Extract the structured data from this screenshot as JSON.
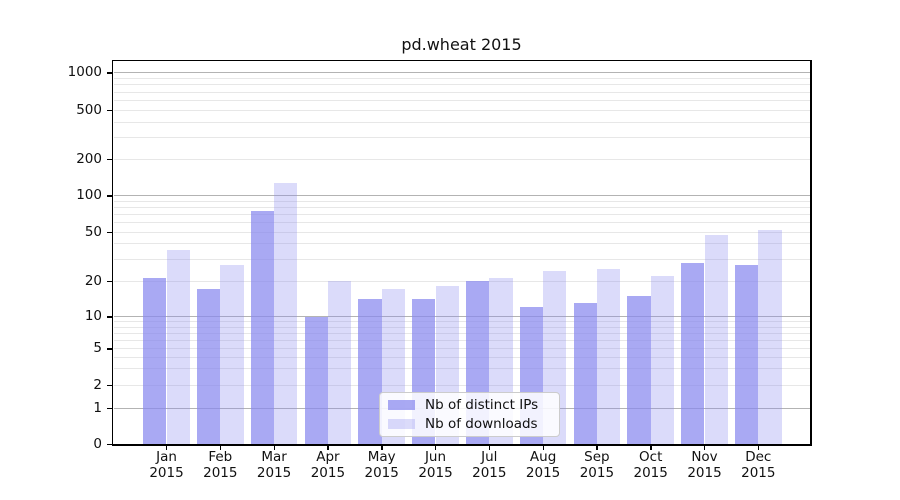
{
  "title": "pd.wheat 2015",
  "chart_data": {
    "type": "bar",
    "title": "pd.wheat 2015",
    "x_months": [
      "Jan",
      "Feb",
      "Mar",
      "Apr",
      "May",
      "Jun",
      "Jul",
      "Aug",
      "Sep",
      "Oct",
      "Nov",
      "Dec"
    ],
    "x_year": "2015",
    "series": [
      {
        "name": "Nb of distinct IPs",
        "color": "rgba(136,136,238,0.72)",
        "values": [
          21,
          17,
          75,
          10,
          14,
          14,
          20,
          12,
          13,
          15,
          28,
          27
        ]
      },
      {
        "name": "Nb of downloads",
        "color": "rgba(136,136,238,0.30)",
        "values": [
          36,
          27,
          126,
          20,
          17,
          18,
          21,
          24,
          25,
          22,
          47,
          52
        ]
      }
    ],
    "yscale": "symlog",
    "yticks": [
      0,
      1,
      2,
      5,
      10,
      20,
      50,
      100,
      200,
      500,
      1000
    ],
    "minor_grid_values": [
      2,
      3,
      4,
      5,
      6,
      7,
      8,
      9,
      20,
      30,
      40,
      50,
      60,
      70,
      80,
      90,
      200,
      300,
      400,
      500,
      600,
      700,
      800,
      900
    ],
    "major_grid_values": [
      1,
      10,
      100,
      1000
    ],
    "ylim": [
      0,
      1230
    ],
    "grid": true,
    "legend_position": "lower center"
  },
  "colors": {
    "major_grid": "#b3b3b3",
    "minor_grid": "#e7e7e7",
    "spine": "#000000",
    "text": "#111111"
  }
}
